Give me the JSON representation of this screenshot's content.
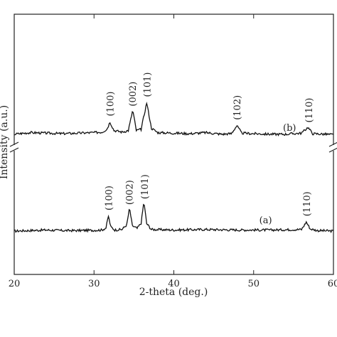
{
  "chart_data": {
    "type": "line",
    "title": "",
    "xlabel": "2-theta (deg.)",
    "ylabel": "Intensity (a.u.)",
    "xlim": [
      20,
      60
    ],
    "xticks": [
      "20",
      "30",
      "40",
      "50",
      "60"
    ],
    "ytick_labels": false,
    "axis_break": true,
    "grid": false,
    "legend": "none",
    "line_color": "#111111",
    "series": [
      {
        "name": "(a)",
        "points": [
          [
            20,
            0
          ],
          [
            22,
            0.1
          ],
          [
            24,
            0.2
          ],
          [
            26,
            0.1
          ],
          [
            28,
            0.1
          ],
          [
            30,
            0.15
          ],
          [
            31,
            0.2
          ],
          [
            31.5,
            0.6
          ],
          [
            31.8,
            2.8
          ],
          [
            32.1,
            0.8
          ],
          [
            32.6,
            0.2
          ],
          [
            33.5,
            0.3
          ],
          [
            34.1,
            1.2
          ],
          [
            34.45,
            4.3
          ],
          [
            34.8,
            1.0
          ],
          [
            35.4,
            0.5
          ],
          [
            35.9,
            1.5
          ],
          [
            36.25,
            5.5
          ],
          [
            36.6,
            1.4
          ],
          [
            37.2,
            0.3
          ],
          [
            40,
            0.2
          ],
          [
            44,
            0.3
          ],
          [
            48,
            0.2
          ],
          [
            52,
            0.2
          ],
          [
            56,
            0.3
          ],
          [
            56.6,
            1.7
          ],
          [
            57.1,
            0.4
          ],
          [
            58,
            0.1
          ],
          [
            60,
            0
          ]
        ],
        "peaks": [
          {
            "x": 31.8,
            "label": "(100)"
          },
          {
            "x": 34.4,
            "label": "(002)"
          },
          {
            "x": 36.3,
            "label": "(101)"
          },
          {
            "x": 56.6,
            "label": "(110)"
          }
        ]
      },
      {
        "name": "(b)",
        "points": [
          [
            20,
            0.3
          ],
          [
            22,
            0.6
          ],
          [
            24,
            0.5
          ],
          [
            26,
            0.4
          ],
          [
            28,
            0.5
          ],
          [
            30,
            0.6
          ],
          [
            31,
            0.7
          ],
          [
            31.6,
            1.2
          ],
          [
            32.0,
            2.6
          ],
          [
            32.5,
            1.0
          ],
          [
            33.5,
            0.7
          ],
          [
            34.3,
            1.0
          ],
          [
            34.85,
            4.8
          ],
          [
            35.3,
            1.0
          ],
          [
            35.9,
            1.2
          ],
          [
            36.6,
            6.2
          ],
          [
            37.2,
            1.4
          ],
          [
            38,
            0.6
          ],
          [
            40,
            0.5
          ],
          [
            42,
            0.4
          ],
          [
            44,
            0.6
          ],
          [
            46,
            0.3
          ],
          [
            47.2,
            0.4
          ],
          [
            47.9,
            1.9
          ],
          [
            48.5,
            0.5
          ],
          [
            50,
            0.4
          ],
          [
            52,
            0.3
          ],
          [
            54,
            0.3
          ],
          [
            56,
            0.5
          ],
          [
            56.8,
            1.6
          ],
          [
            57.4,
            0.4
          ],
          [
            59,
            0.3
          ],
          [
            60,
            0.2
          ]
        ],
        "peaks": [
          {
            "x": 32.0,
            "label": "(100)"
          },
          {
            "x": 34.8,
            "label": "(002)"
          },
          {
            "x": 36.6,
            "label": "(101)"
          },
          {
            "x": 47.9,
            "label": "(102)"
          },
          {
            "x": 56.9,
            "label": "(110)"
          }
        ]
      }
    ]
  }
}
